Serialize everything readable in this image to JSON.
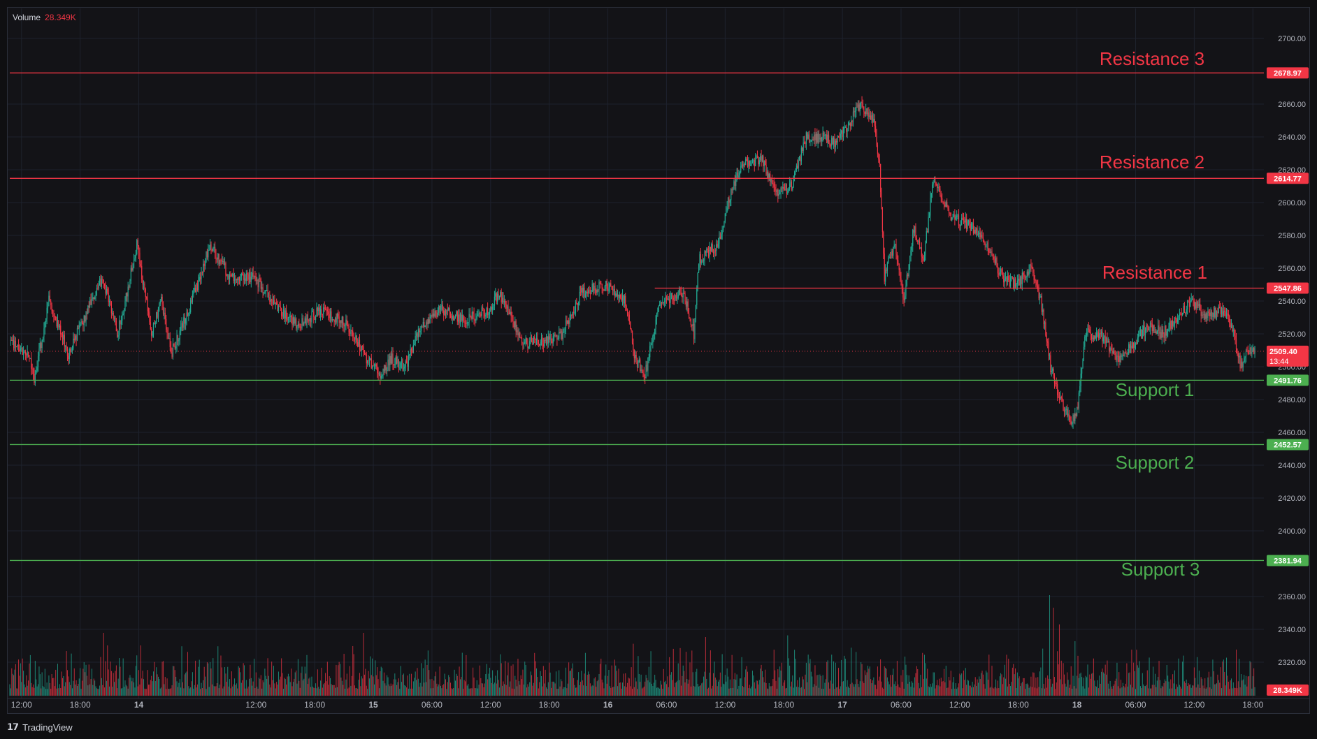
{
  "volume_legend": {
    "label": "Volume",
    "value": "28.349K"
  },
  "branding": {
    "logo_icon": "tradingview-logo-icon",
    "text": "TradingView"
  },
  "colors": {
    "background": "#131317",
    "grid": "#1e222d",
    "up": "#22ab94",
    "down": "#f23645",
    "resistance": "#f23645",
    "support": "#4caf50",
    "axis_text": "#b2b5be"
  },
  "chart_data": {
    "type": "candlestick",
    "y_axis": {
      "min": 2300,
      "max": 2705,
      "ticks": [
        2320,
        2340,
        2360,
        2400,
        2420,
        2440,
        2460,
        2480,
        2500,
        2520,
        2540,
        2560,
        2580,
        2600,
        2620,
        2640,
        2660,
        2700
      ],
      "tick_labels": [
        "2320.00",
        "2340.00",
        "2360.00",
        "2400.00",
        "2420.00",
        "2440.00",
        "2460.00",
        "2480.00",
        "2500.00",
        "2520.00",
        "2540.00",
        "2560.00",
        "2580.00",
        "2600.00",
        "2620.00",
        "2640.00",
        "2660.00",
        "2700.00"
      ]
    },
    "x_axis": {
      "tick_labels": [
        "12:00",
        "18:00",
        "14",
        "12:00",
        "18:00",
        "15",
        "06:00",
        "12:00",
        "18:00",
        "16",
        "06:00",
        "12:00",
        "18:00",
        "17",
        "06:00",
        "12:00",
        "18:00",
        "18",
        "06:00",
        "12:00",
        "18:00"
      ],
      "bold": [
        false,
        false,
        true,
        false,
        false,
        true,
        false,
        false,
        false,
        true,
        false,
        false,
        false,
        true,
        false,
        false,
        false,
        true,
        false,
        false,
        false
      ],
      "tick_index": [
        12,
        72,
        132,
        252,
        312,
        372,
        432,
        492,
        552,
        612,
        672,
        732,
        792,
        852,
        912,
        972,
        1032,
        1092,
        1152,
        1212,
        1272
      ]
    },
    "levels": [
      {
        "name": "Resistance 3",
        "value": 2678.97,
        "label": "2678.97",
        "kind": "resistance",
        "x_start_index": 0
      },
      {
        "name": "Resistance 2",
        "value": 2614.77,
        "label": "2614.77",
        "kind": "resistance",
        "x_start_index": 0
      },
      {
        "name": "Resistance 1",
        "value": 2547.86,
        "label": "2547.86",
        "kind": "resistance",
        "x_start_index": 660
      },
      {
        "name": "Support 1",
        "value": 2491.76,
        "label": "2491.76",
        "kind": "support",
        "x_start_index": 0
      },
      {
        "name": "Support 2",
        "value": 2452.57,
        "label": "2452.57",
        "kind": "support",
        "x_start_index": 0
      },
      {
        "name": "Support 3",
        "value": 2381.94,
        "label": "2381.94",
        "kind": "support",
        "x_start_index": 0
      }
    ],
    "current_price": {
      "value": 2509.4,
      "label": "2509.40",
      "countdown": "13:44"
    },
    "volume_last": {
      "label": "28.349K"
    },
    "anchors": [
      [
        0,
        2515
      ],
      [
        20,
        2505
      ],
      [
        25,
        2492
      ],
      [
        40,
        2540
      ],
      [
        60,
        2508
      ],
      [
        80,
        2535
      ],
      [
        95,
        2555
      ],
      [
        110,
        2520
      ],
      [
        120,
        2545
      ],
      [
        130,
        2575
      ],
      [
        145,
        2520
      ],
      [
        155,
        2540
      ],
      [
        165,
        2508
      ],
      [
        180,
        2530
      ],
      [
        195,
        2555
      ],
      [
        205,
        2575
      ],
      [
        225,
        2555
      ],
      [
        250,
        2555
      ],
      [
        275,
        2535
      ],
      [
        295,
        2525
      ],
      [
        320,
        2535
      ],
      [
        345,
        2525
      ],
      [
        365,
        2505
      ],
      [
        380,
        2495
      ],
      [
        390,
        2505
      ],
      [
        405,
        2500
      ],
      [
        420,
        2525
      ],
      [
        440,
        2535
      ],
      [
        465,
        2528
      ],
      [
        490,
        2535
      ],
      [
        500,
        2545
      ],
      [
        525,
        2515
      ],
      [
        545,
        2515
      ],
      [
        565,
        2520
      ],
      [
        585,
        2545
      ],
      [
        610,
        2550
      ],
      [
        630,
        2540
      ],
      [
        640,
        2505
      ],
      [
        650,
        2495
      ],
      [
        665,
        2540
      ],
      [
        690,
        2545
      ],
      [
        700,
        2520
      ],
      [
        705,
        2565
      ],
      [
        725,
        2575
      ],
      [
        735,
        2600
      ],
      [
        750,
        2625
      ],
      [
        770,
        2625
      ],
      [
        785,
        2605
      ],
      [
        800,
        2610
      ],
      [
        815,
        2640
      ],
      [
        835,
        2640
      ],
      [
        845,
        2635
      ],
      [
        855,
        2645
      ],
      [
        870,
        2660
      ],
      [
        885,
        2650
      ],
      [
        890,
        2620
      ],
      [
        895,
        2555
      ],
      [
        905,
        2575
      ],
      [
        915,
        2540
      ],
      [
        925,
        2585
      ],
      [
        935,
        2565
      ],
      [
        945,
        2615
      ],
      [
        965,
        2590
      ],
      [
        985,
        2585
      ],
      [
        1000,
        2575
      ],
      [
        1015,
        2555
      ],
      [
        1030,
        2550
      ],
      [
        1045,
        2560
      ],
      [
        1055,
        2540
      ],
      [
        1065,
        2500
      ],
      [
        1075,
        2480
      ],
      [
        1085,
        2465
      ],
      [
        1092,
        2472
      ],
      [
        1100,
        2520
      ],
      [
        1115,
        2520
      ],
      [
        1135,
        2505
      ],
      [
        1150,
        2515
      ],
      [
        1165,
        2525
      ],
      [
        1180,
        2520
      ],
      [
        1195,
        2530
      ],
      [
        1210,
        2540
      ],
      [
        1225,
        2530
      ],
      [
        1240,
        2535
      ],
      [
        1250,
        2525
      ],
      [
        1260,
        2500
      ],
      [
        1267,
        2510
      ]
    ],
    "volume_spikes": [
      [
        96,
        0.75
      ],
      [
        100,
        0.6
      ],
      [
        134,
        0.6
      ],
      [
        362,
        0.75
      ],
      [
        712,
        0.7
      ],
      [
        796,
        0.72
      ],
      [
        1064,
        1.2
      ],
      [
        1068,
        1.05
      ],
      [
        1074,
        0.85
      ],
      [
        1090,
        0.65
      ],
      [
        1255,
        0.55
      ]
    ]
  }
}
